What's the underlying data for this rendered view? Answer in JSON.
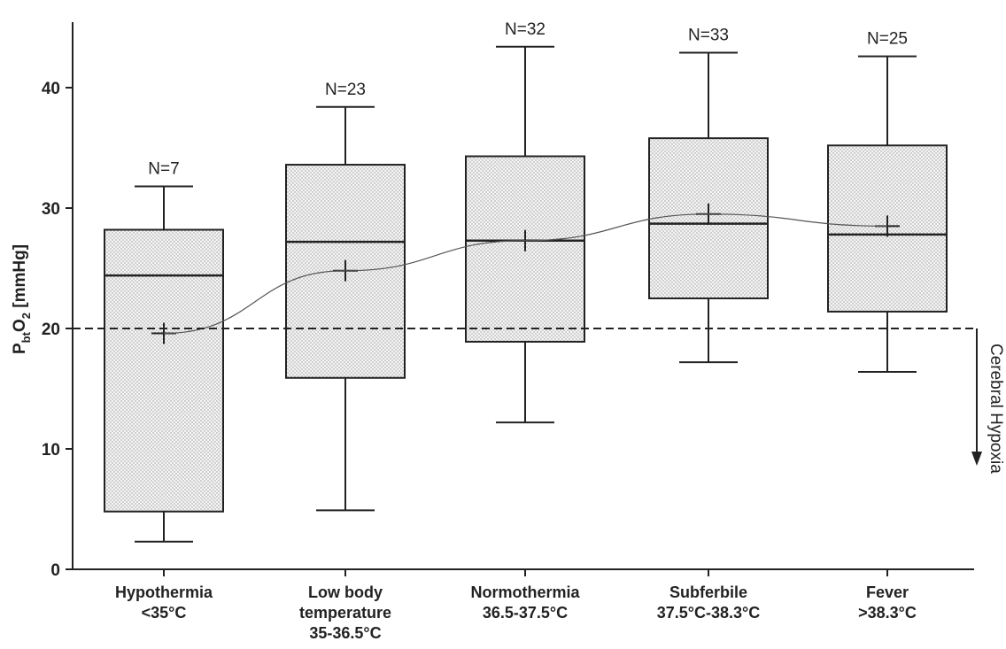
{
  "chart_data": {
    "type": "box",
    "ylabel": {
      "main": "P",
      "sub": "bt",
      "main2": "O",
      "sub2": "2",
      "unit": "[mmHg]"
    },
    "ylim": [
      0,
      45
    ],
    "yticks": [
      0,
      10,
      20,
      30,
      40
    ],
    "categories": [
      {
        "lines": [
          "Hypothermia",
          "<35°C"
        ],
        "n_label": "N=7",
        "whisker_low": 2.3,
        "q1": 4.8,
        "median": 24.4,
        "q3": 28.2,
        "whisker_high": 31.8,
        "mean": 19.6
      },
      {
        "lines": [
          "Low body",
          "temperature",
          "35-36.5°C"
        ],
        "n_label": "N=23",
        "whisker_low": 4.9,
        "q1": 15.9,
        "median": 27.2,
        "q3": 33.6,
        "whisker_high": 38.4,
        "mean": 24.8
      },
      {
        "lines": [
          "Normothermia",
          "36.5-37.5°C"
        ],
        "n_label": "N=32",
        "whisker_low": 12.2,
        "q1": 18.9,
        "median": 27.3,
        "q3": 34.3,
        "whisker_high": 43.4,
        "mean": 27.3
      },
      {
        "lines": [
          "Subferbile",
          "37.5°C-38.3°C"
        ],
        "n_label": "N=33",
        "whisker_low": 17.2,
        "q1": 22.5,
        "median": 28.7,
        "q3": 35.8,
        "whisker_high": 42.9,
        "mean": 29.5
      },
      {
        "lines": [
          "Fever",
          ">38.3°C"
        ],
        "n_label": "N=25",
        "whisker_low": 16.4,
        "q1": 21.4,
        "median": 27.8,
        "q3": 35.2,
        "whisker_high": 42.6,
        "mean": 28.5
      }
    ],
    "threshold": {
      "value": 20,
      "style": "dashed"
    },
    "annotation": "Cerebral Hypoxia",
    "box_fill": "#eeeeee",
    "stroke_color": "#222222"
  }
}
